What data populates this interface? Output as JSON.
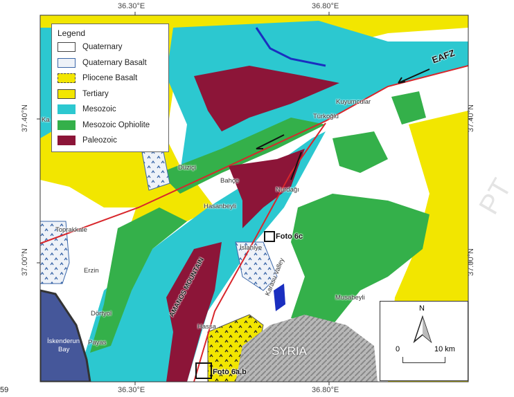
{
  "legend": {
    "title": "Legend",
    "items": [
      {
        "label": "Quaternary",
        "color": "#ffffff"
      },
      {
        "label": "Quaternary Basalt",
        "color": "#eef2f8"
      },
      {
        "label": "Pliocene Basalt",
        "color": "#f2e600"
      },
      {
        "label": "Tertiary",
        "color": "#f2e600"
      },
      {
        "label": "Mesozoic",
        "color": "#2cc8d0"
      },
      {
        "label": "Mesozoic Ophiolite",
        "color": "#34b04a"
      },
      {
        "label": "Paleozoic",
        "color": "#8c1538"
      }
    ]
  },
  "ticks": {
    "top": [
      "36.30°E",
      "36.80°E"
    ],
    "bottom": [
      "36.30°E",
      "36.80°E"
    ],
    "left": [
      "37.40°N",
      "37.00°N"
    ],
    "right": [
      "37.40°N",
      "37.00°N"
    ]
  },
  "places": {
    "kuyumcular": "Kuyumcular",
    "turkoglu": "Türkoğlu",
    "duzici": "Düziçi",
    "bahce": "Bahçe",
    "nurdagi": "Nurdağı",
    "hasanbeyli": "Hasanbeyli",
    "toprakkale": "Toprakkale",
    "islahiye": "İslahiye",
    "erzin": "Erzin",
    "dortyol": "Dörtyol",
    "iskenderun": "İskenderun",
    "bay": "Bay",
    "payas": "Payas",
    "hassa": "Hassa",
    "musabeyli": "Musabeyli",
    "karasu": "Karasu Valley",
    "amanos": "AMANOS MOUNTAIN",
    "syria": "SYRIA",
    "ka": "Ka",
    "eafz": "EAFZ",
    "foto6c": "Foto 6c",
    "foto6ab": "Foto 6a,b"
  },
  "scale": {
    "north": "N",
    "zero": "0",
    "max": "10 km"
  },
  "page_number": "59",
  "watermark": "PT",
  "colors": {
    "fault": "#d8262b",
    "water": "#1a2fc0",
    "bay": "#45579a"
  }
}
